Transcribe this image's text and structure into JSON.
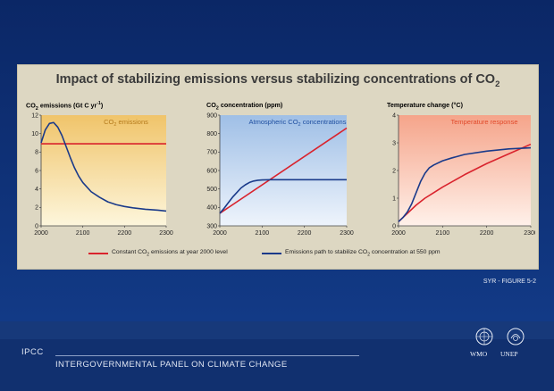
{
  "slide": {
    "title_main": "Impact of stabilizing emissions versus stabilizing concentrations of CO",
    "title_sub": "2",
    "figure_ref": "SYR - FIGURE 5-2"
  },
  "footer": {
    "brand": "IPCC",
    "org_name": "INTERGOVERNMENTAL PANEL ON CLIMATE CHANGE",
    "logo_wmo": "WMO",
    "logo_unep": "UNEP"
  },
  "legend": {
    "constant_pre": "Constant CO",
    "constant_sub": "2",
    "constant_post": " emissions at year 2000 level",
    "stabilize_pre": "Emissions path to stabilize CO",
    "stabilize_sub": "2",
    "stabilize_post": " concentration at 550 ppm"
  },
  "colors": {
    "red": "#d9232d",
    "blue": "#1a3a8a"
  },
  "chart_data": [
    {
      "type": "line",
      "ylabel_pre": "CO",
      "ylabel_sub": "2",
      "ylabel_mid": " emissions (Gt C yr",
      "ylabel_sup": "-1",
      "ylabel_post": ")",
      "inner_title_pre": "CO",
      "inner_title_sub": "2",
      "inner_title_post": " emissions",
      "xlim": [
        2000,
        2300
      ],
      "ylim": [
        0,
        12
      ],
      "xticks": [
        "2000",
        "2100",
        "2200",
        "2300"
      ],
      "yticks": [
        "0",
        "2",
        "4",
        "6",
        "8",
        "10",
        "12"
      ],
      "series": [
        {
          "x": [
            2000,
            2300
          ],
          "y": [
            8.9,
            8.9
          ]
        },
        {
          "x": [
            2000,
            2010,
            2020,
            2030,
            2040,
            2050,
            2060,
            2070,
            2080,
            2090,
            2100,
            2120,
            2140,
            2160,
            2180,
            2200,
            2220,
            2250,
            2280,
            2300
          ],
          "y": [
            9.0,
            10.4,
            11.1,
            11.2,
            10.7,
            9.8,
            8.6,
            7.4,
            6.3,
            5.4,
            4.7,
            3.7,
            3.1,
            2.6,
            2.3,
            2.1,
            1.95,
            1.8,
            1.7,
            1.6
          ]
        }
      ]
    },
    {
      "type": "line",
      "ylabel_pre": "CO",
      "ylabel_sub": "2",
      "ylabel_mid": " concentration (ppm)",
      "ylabel_sup": "",
      "ylabel_post": "",
      "inner_title_pre": "Atmospheric CO",
      "inner_title_sub": "2",
      "inner_title_post": " concentrations",
      "xlim": [
        2000,
        2300
      ],
      "ylim": [
        300,
        900
      ],
      "xticks": [
        "2000",
        "2100",
        "2200",
        "2300"
      ],
      "yticks": [
        "300",
        "400",
        "500",
        "600",
        "700",
        "800",
        "900"
      ],
      "series": [
        {
          "x": [
            2000,
            2300
          ],
          "y": [
            368,
            830
          ]
        },
        {
          "x": [
            2000,
            2010,
            2020,
            2030,
            2040,
            2050,
            2060,
            2070,
            2080,
            2090,
            2100,
            2120,
            2150,
            2200,
            2250,
            2300
          ],
          "y": [
            368,
            395,
            425,
            455,
            480,
            505,
            522,
            535,
            543,
            547,
            549,
            550,
            550,
            550,
            550,
            550
          ]
        }
      ]
    },
    {
      "type": "line",
      "ylabel_pre": "Temperature change (°C)",
      "ylabel_sub": "",
      "ylabel_mid": "",
      "ylabel_sup": "",
      "ylabel_post": "",
      "inner_title_pre": "Temperature response",
      "inner_title_sub": "",
      "inner_title_post": "",
      "xlim": [
        2000,
        2300
      ],
      "ylim": [
        0,
        4
      ],
      "xticks": [
        "2000",
        "2100",
        "2200",
        "2300"
      ],
      "yticks": [
        "0",
        "1",
        "2",
        "3",
        "4"
      ],
      "series": [
        {
          "x": [
            2000,
            2020,
            2040,
            2060,
            2080,
            2100,
            2150,
            2200,
            2250,
            2300
          ],
          "y": [
            0.15,
            0.45,
            0.75,
            1.0,
            1.2,
            1.4,
            1.85,
            2.25,
            2.6,
            2.95
          ]
        },
        {
          "x": [
            2000,
            2010,
            2020,
            2030,
            2040,
            2050,
            2060,
            2070,
            2080,
            2100,
            2120,
            2150,
            2200,
            2250,
            2300
          ],
          "y": [
            0.15,
            0.3,
            0.5,
            0.8,
            1.2,
            1.6,
            1.9,
            2.1,
            2.2,
            2.35,
            2.45,
            2.58,
            2.7,
            2.78,
            2.82
          ]
        }
      ]
    }
  ]
}
